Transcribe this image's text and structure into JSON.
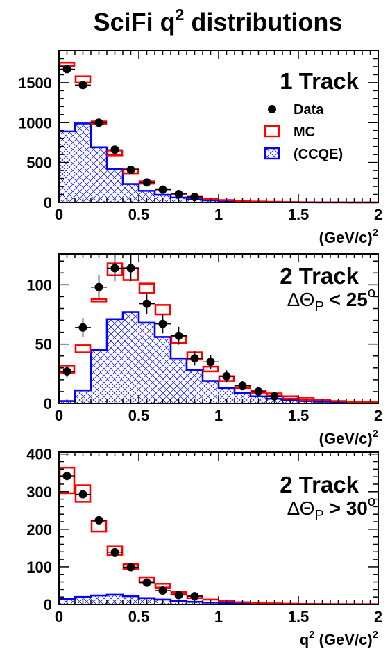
{
  "figure": {
    "title_main": "SciFi q",
    "title_sup": "2",
    "title_rest": " distributions"
  },
  "colors": {
    "data": "#000000",
    "mc": "#ff0000",
    "ccqe": "#0000ff",
    "axis": "#000000"
  },
  "chart_data": [
    {
      "type": "histogram",
      "label": "1 Track",
      "sublabel": "",
      "xlabel": "(GeV/c)",
      "xlabel_sup": "2",
      "xlim": [
        0,
        2
      ],
      "ylim": [
        0,
        1900
      ],
      "yticks": [
        0,
        500,
        1000,
        1500
      ],
      "xticks": [
        0,
        0.5,
        1,
        1.5,
        2
      ],
      "xtick_labels": [
        "0",
        "0.5",
        "1",
        "1.5",
        "2"
      ],
      "bin_edges": [
        0,
        0.1,
        0.2,
        0.3,
        0.4,
        0.5,
        0.6,
        0.7,
        0.8,
        0.9,
        1.0,
        1.1,
        1.2,
        1.3,
        1.4,
        1.5,
        1.6,
        1.7,
        1.8,
        1.9,
        2.0
      ],
      "legend": {
        "entries": [
          "Data",
          "MC",
          "(CCQE)"
        ],
        "placement": "right"
      },
      "series": [
        {
          "name": "Data",
          "style": "points",
          "x": [
            0.05,
            0.15,
            0.25,
            0.35,
            0.45,
            0.55,
            0.65,
            0.75,
            0.85
          ],
          "values": [
            1670,
            1470,
            1000,
            660,
            410,
            250,
            160,
            105,
            70
          ],
          "errors": [
            40,
            38,
            32,
            26,
            20,
            16,
            13,
            10,
            8
          ]
        },
        {
          "name": "MC",
          "style": "box",
          "values": [
            1730,
            1540,
            1000,
            620,
            390,
            250,
            165,
            110,
            70,
            45,
            30,
            20,
            12,
            8,
            5,
            3,
            2,
            1,
            0,
            0
          ],
          "halfwidths": [
            20,
            40,
            15,
            30,
            25,
            15,
            12,
            10,
            8,
            6,
            5,
            4,
            3,
            2,
            2,
            1,
            1,
            0,
            0,
            0
          ]
        },
        {
          "name": "(CCQE)",
          "style": "hatched",
          "values": [
            890,
            990,
            690,
            420,
            230,
            145,
            95,
            62,
            40,
            27,
            18,
            12,
            8,
            5,
            3,
            2,
            1,
            1,
            0,
            0
          ]
        }
      ]
    },
    {
      "type": "histogram",
      "label": "2 Track",
      "sublabel": "ΔΘ_P < 25°",
      "xlabel": "(GeV/c)",
      "xlabel_sup": "2",
      "xlim": [
        0,
        2
      ],
      "ylim": [
        0,
        126
      ],
      "yticks": [
        0,
        50,
        100
      ],
      "xticks": [
        0,
        0.5,
        1,
        1.5,
        2
      ],
      "xtick_labels": [
        "0",
        "0.5",
        "1",
        "1.5",
        "2"
      ],
      "bin_edges": [
        0,
        0.1,
        0.2,
        0.3,
        0.4,
        0.5,
        0.6,
        0.7,
        0.8,
        0.9,
        1.0,
        1.1,
        1.2,
        1.3,
        1.4,
        1.5,
        1.6,
        1.7,
        1.8,
        1.9,
        2.0
      ],
      "series": [
        {
          "name": "Data",
          "style": "points",
          "x": [
            0.05,
            0.15,
            0.25,
            0.35,
            0.45,
            0.55,
            0.65,
            0.75,
            0.85,
            0.95,
            1.05,
            1.15,
            1.25,
            1.35
          ],
          "values": [
            27,
            64,
            98,
            114,
            114,
            84,
            67,
            57,
            38,
            35,
            23,
            15,
            10,
            6
          ],
          "errors": [
            5,
            8,
            10,
            11,
            11,
            9,
            8,
            7.5,
            6,
            6,
            5,
            4,
            3,
            2.5
          ]
        },
        {
          "name": "MC",
          "style": "box",
          "values": [
            29,
            46,
            87,
            113,
            109,
            97,
            79,
            54,
            40,
            29,
            21,
            14,
            10,
            7.5,
            5,
            4,
            3,
            2,
            1,
            1
          ],
          "halfwidths": [
            3,
            3,
            1,
            5,
            5,
            4,
            4,
            3,
            3,
            2,
            2,
            1,
            1,
            1,
            1,
            1,
            0.5,
            0.5,
            0.5,
            0.5
          ]
        },
        {
          "name": "(CCQE)",
          "style": "hatched",
          "values": [
            2,
            11,
            45,
            71,
            77,
            68,
            56,
            38,
            28,
            19,
            13,
            9,
            6,
            4,
            3,
            2,
            1.5,
            1,
            0.5,
            0.5
          ]
        }
      ]
    },
    {
      "type": "histogram",
      "label": "2 Track",
      "sublabel": "ΔΘ_P > 30°",
      "xlabel": "q",
      "xlabel_sup": "2",
      "xlabel_rest": " (GeV/c)",
      "xlabel_sup2": "2",
      "xlim": [
        0,
        2
      ],
      "ylim": [
        0,
        405
      ],
      "yticks": [
        0,
        100,
        200,
        300,
        400
      ],
      "xticks": [
        0,
        0.5,
        1,
        1.5,
        2
      ],
      "xtick_labels": [
        "0",
        "0.5",
        "1",
        "1.5",
        "2"
      ],
      "bin_edges": [
        0,
        0.1,
        0.2,
        0.3,
        0.4,
        0.5,
        0.6,
        0.7,
        0.8,
        0.9,
        1.0,
        1.1,
        1.2,
        1.3,
        1.4,
        1.5,
        1.6,
        1.7,
        1.8,
        1.9,
        2.0
      ],
      "series": [
        {
          "name": "Data",
          "style": "points",
          "x": [
            0.05,
            0.15,
            0.25,
            0.35,
            0.45,
            0.55,
            0.65,
            0.75,
            0.85
          ],
          "values": [
            342,
            293,
            224,
            139,
            99,
            58,
            37,
            25,
            22
          ],
          "errors": [
            12,
            11,
            10,
            8,
            6,
            5,
            4,
            3.5,
            3
          ]
        },
        {
          "name": "MC",
          "style": "box",
          "values": [
            330,
            295,
            208,
            143,
            101,
            66,
            50,
            30,
            20,
            13,
            9,
            6,
            4,
            3,
            2,
            1,
            1,
            0.5,
            0.5,
            0.5
          ],
          "halfwidths": [
            34,
            22,
            14,
            11,
            6,
            6,
            5,
            3,
            3,
            2,
            2,
            1,
            1,
            1,
            1,
            0.5,
            0.5,
            0.5,
            0.5,
            0.5
          ]
        },
        {
          "name": "(CCQE)",
          "style": "hatched",
          "values": [
            15,
            20,
            24,
            26,
            22,
            17,
            13,
            9,
            7,
            5,
            4,
            3,
            2,
            1.5,
            1,
            1,
            0.5,
            0.5,
            0.5,
            0.5
          ]
        }
      ]
    }
  ]
}
